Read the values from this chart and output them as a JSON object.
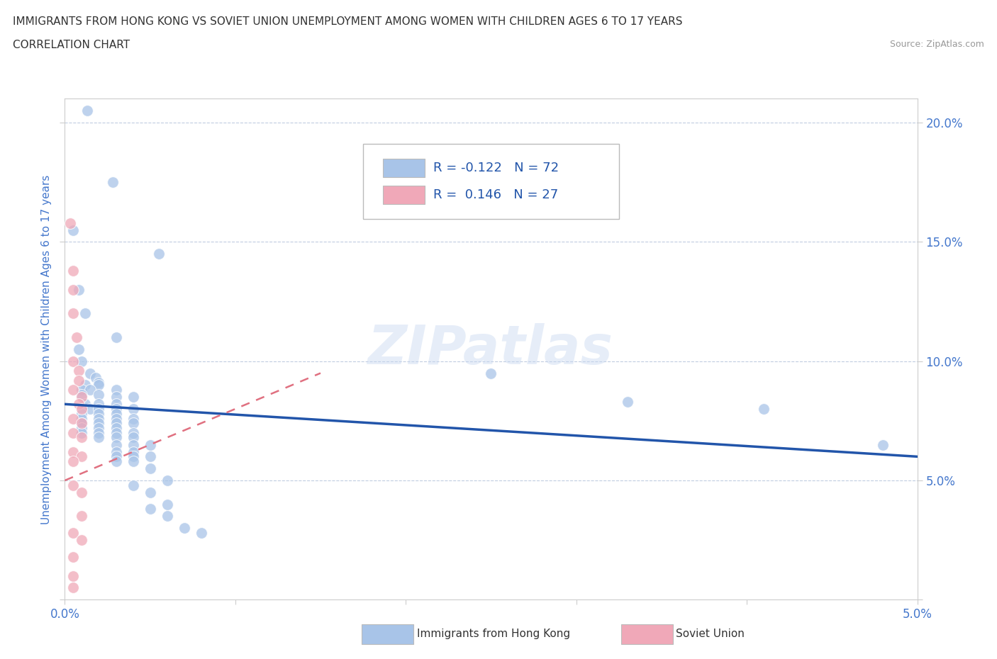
{
  "title_line1": "IMMIGRANTS FROM HONG KONG VS SOVIET UNION UNEMPLOYMENT AMONG WOMEN WITH CHILDREN AGES 6 TO 17 YEARS",
  "title_line2": "CORRELATION CHART",
  "source_text": "Source: ZipAtlas.com",
  "ylabel": "Unemployment Among Women with Children Ages 6 to 17 years",
  "xlim": [
    0.0,
    0.05
  ],
  "ylim": [
    0.0,
    0.21
  ],
  "hk_color": "#a8c4e8",
  "su_color": "#f0a8b8",
  "hk_line_color": "#2255aa",
  "su_line_color": "#e07080",
  "watermark": "ZIPatlas",
  "hk_points": [
    [
      0.0013,
      0.205
    ],
    [
      0.0028,
      0.175
    ],
    [
      0.0005,
      0.155
    ],
    [
      0.0055,
      0.145
    ],
    [
      0.0008,
      0.13
    ],
    [
      0.0012,
      0.12
    ],
    [
      0.003,
      0.11
    ],
    [
      0.0008,
      0.105
    ],
    [
      0.001,
      0.1
    ],
    [
      0.0015,
      0.095
    ],
    [
      0.0018,
      0.093
    ],
    [
      0.002,
      0.091
    ],
    [
      0.0012,
      0.09
    ],
    [
      0.002,
      0.09
    ],
    [
      0.001,
      0.088
    ],
    [
      0.0015,
      0.088
    ],
    [
      0.003,
      0.088
    ],
    [
      0.001,
      0.086
    ],
    [
      0.002,
      0.086
    ],
    [
      0.003,
      0.085
    ],
    [
      0.004,
      0.085
    ],
    [
      0.0012,
      0.082
    ],
    [
      0.002,
      0.082
    ],
    [
      0.003,
      0.082
    ],
    [
      0.0015,
      0.08
    ],
    [
      0.002,
      0.08
    ],
    [
      0.003,
      0.08
    ],
    [
      0.004,
      0.08
    ],
    [
      0.001,
      0.078
    ],
    [
      0.002,
      0.078
    ],
    [
      0.003,
      0.078
    ],
    [
      0.001,
      0.076
    ],
    [
      0.002,
      0.076
    ],
    [
      0.003,
      0.076
    ],
    [
      0.004,
      0.076
    ],
    [
      0.001,
      0.074
    ],
    [
      0.002,
      0.074
    ],
    [
      0.003,
      0.074
    ],
    [
      0.004,
      0.074
    ],
    [
      0.001,
      0.072
    ],
    [
      0.002,
      0.072
    ],
    [
      0.003,
      0.072
    ],
    [
      0.001,
      0.07
    ],
    [
      0.002,
      0.07
    ],
    [
      0.003,
      0.07
    ],
    [
      0.004,
      0.07
    ],
    [
      0.002,
      0.068
    ],
    [
      0.003,
      0.068
    ],
    [
      0.004,
      0.068
    ],
    [
      0.003,
      0.065
    ],
    [
      0.004,
      0.065
    ],
    [
      0.005,
      0.065
    ],
    [
      0.003,
      0.062
    ],
    [
      0.004,
      0.062
    ],
    [
      0.003,
      0.06
    ],
    [
      0.004,
      0.06
    ],
    [
      0.005,
      0.06
    ],
    [
      0.003,
      0.058
    ],
    [
      0.004,
      0.058
    ],
    [
      0.005,
      0.055
    ],
    [
      0.006,
      0.05
    ],
    [
      0.004,
      0.048
    ],
    [
      0.005,
      0.045
    ],
    [
      0.006,
      0.04
    ],
    [
      0.005,
      0.038
    ],
    [
      0.006,
      0.035
    ],
    [
      0.007,
      0.03
    ],
    [
      0.008,
      0.028
    ],
    [
      0.025,
      0.095
    ],
    [
      0.033,
      0.083
    ],
    [
      0.041,
      0.08
    ],
    [
      0.048,
      0.065
    ]
  ],
  "su_points": [
    [
      0.0003,
      0.158
    ],
    [
      0.0005,
      0.138
    ],
    [
      0.0005,
      0.13
    ],
    [
      0.0005,
      0.12
    ],
    [
      0.0007,
      0.11
    ],
    [
      0.0005,
      0.1
    ],
    [
      0.0008,
      0.096
    ],
    [
      0.0008,
      0.092
    ],
    [
      0.0005,
      0.088
    ],
    [
      0.001,
      0.085
    ],
    [
      0.0008,
      0.082
    ],
    [
      0.001,
      0.08
    ],
    [
      0.0005,
      0.076
    ],
    [
      0.001,
      0.074
    ],
    [
      0.0005,
      0.07
    ],
    [
      0.001,
      0.068
    ],
    [
      0.0005,
      0.062
    ],
    [
      0.001,
      0.06
    ],
    [
      0.0005,
      0.058
    ],
    [
      0.0005,
      0.048
    ],
    [
      0.001,
      0.045
    ],
    [
      0.001,
      0.035
    ],
    [
      0.0005,
      0.028
    ],
    [
      0.001,
      0.025
    ],
    [
      0.0005,
      0.018
    ],
    [
      0.0005,
      0.01
    ],
    [
      0.0005,
      0.005
    ]
  ],
  "hk_line_x0": 0.0,
  "hk_line_y0": 0.082,
  "hk_line_x1": 0.05,
  "hk_line_y1": 0.06,
  "su_line_x0": 0.0,
  "su_line_y0": 0.05,
  "su_line_x1": 0.015,
  "su_line_y1": 0.095
}
